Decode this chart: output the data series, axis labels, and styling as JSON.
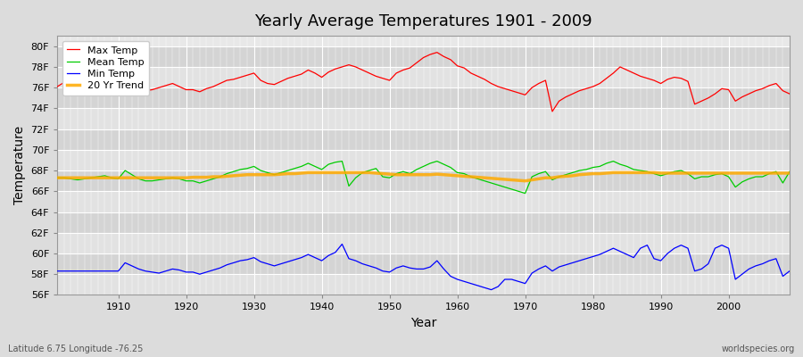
{
  "title": "Yearly Average Temperatures 1901 - 2009",
  "xlabel": "Year",
  "ylabel": "Temperature",
  "subtitle_left": "Latitude 6.75 Longitude -76.25",
  "subtitle_right": "worldspecies.org",
  "ylim": [
    56,
    81
  ],
  "xlim": [
    1901,
    2009
  ],
  "yticks": [
    56,
    58,
    60,
    62,
    64,
    66,
    68,
    70,
    72,
    74,
    76,
    78,
    80
  ],
  "bg_color": "#dcdcdc",
  "plot_bg_light": "#e8e8e8",
  "plot_bg_dark": "#d8d8d8",
  "legend_labels": [
    "Max Temp",
    "Mean Temp",
    "Min Temp",
    "20 Yr Trend"
  ],
  "legend_colors": [
    "#ff0000",
    "#00cc00",
    "#0000ff",
    "#ffaa00"
  ],
  "max_temp": [
    76.1,
    76.5,
    76.3,
    76.0,
    76.2,
    76.4,
    76.1,
    76.0,
    75.8,
    75.7,
    76.5,
    76.3,
    75.9,
    75.7,
    75.8,
    76.0,
    76.2,
    76.4,
    76.1,
    75.8,
    75.8,
    75.6,
    75.9,
    76.1,
    76.4,
    76.7,
    76.8,
    77.0,
    77.2,
    77.4,
    76.7,
    76.4,
    76.3,
    76.6,
    76.9,
    77.1,
    77.3,
    77.7,
    77.4,
    77.0,
    77.5,
    77.8,
    78.0,
    78.2,
    78.0,
    77.7,
    77.4,
    77.1,
    76.9,
    76.7,
    77.4,
    77.7,
    77.9,
    78.4,
    78.9,
    79.2,
    79.4,
    79.0,
    78.7,
    78.1,
    77.9,
    77.4,
    77.1,
    76.8,
    76.4,
    76.1,
    75.9,
    75.7,
    75.5,
    75.3,
    76.0,
    76.4,
    76.7,
    73.7,
    74.7,
    75.1,
    75.4,
    75.7,
    75.9,
    76.1,
    76.4,
    76.9,
    77.4,
    78.0,
    77.7,
    77.4,
    77.1,
    76.9,
    76.7,
    76.4,
    76.8,
    77.0,
    76.9,
    76.6,
    74.4,
    74.7,
    75.0,
    75.4,
    75.9,
    75.8,
    74.7,
    75.1,
    75.4,
    75.7,
    75.9,
    76.2,
    76.4,
    75.7,
    75.4
  ],
  "mean_temp": [
    67.3,
    67.3,
    67.2,
    67.1,
    67.2,
    67.3,
    67.4,
    67.5,
    67.3,
    67.2,
    68.0,
    67.6,
    67.2,
    67.0,
    67.0,
    67.1,
    67.2,
    67.3,
    67.2,
    67.0,
    67.0,
    66.8,
    67.0,
    67.2,
    67.4,
    67.7,
    67.9,
    68.1,
    68.2,
    68.4,
    68.0,
    67.8,
    67.6,
    67.8,
    68.0,
    68.2,
    68.4,
    68.7,
    68.4,
    68.1,
    68.6,
    68.8,
    68.9,
    66.5,
    67.3,
    67.8,
    68.0,
    68.2,
    67.4,
    67.3,
    67.7,
    67.9,
    67.7,
    68.1,
    68.4,
    68.7,
    68.9,
    68.6,
    68.3,
    67.8,
    67.7,
    67.4,
    67.2,
    67.0,
    66.8,
    66.6,
    66.4,
    66.2,
    66.0,
    65.8,
    67.4,
    67.7,
    67.9,
    67.1,
    67.4,
    67.6,
    67.8,
    68.0,
    68.1,
    68.3,
    68.4,
    68.7,
    68.9,
    68.6,
    68.4,
    68.1,
    68.0,
    67.9,
    67.7,
    67.5,
    67.7,
    67.9,
    68.0,
    67.7,
    67.2,
    67.4,
    67.4,
    67.6,
    67.7,
    67.4,
    66.4,
    66.9,
    67.2,
    67.4,
    67.4,
    67.7,
    67.9,
    66.8,
    67.9
  ],
  "min_temp": [
    58.3,
    58.3,
    58.3,
    58.3,
    58.3,
    58.3,
    58.3,
    58.3,
    58.3,
    58.3,
    59.1,
    58.8,
    58.5,
    58.3,
    58.2,
    58.1,
    58.3,
    58.5,
    58.4,
    58.2,
    58.2,
    58.0,
    58.2,
    58.4,
    58.6,
    58.9,
    59.1,
    59.3,
    59.4,
    59.6,
    59.2,
    59.0,
    58.8,
    59.0,
    59.2,
    59.4,
    59.6,
    59.9,
    59.6,
    59.3,
    59.8,
    60.1,
    60.9,
    59.5,
    59.3,
    59.0,
    58.8,
    58.6,
    58.3,
    58.2,
    58.6,
    58.8,
    58.6,
    58.5,
    58.5,
    58.7,
    59.3,
    58.5,
    57.8,
    57.5,
    57.3,
    57.1,
    56.9,
    56.7,
    56.5,
    56.8,
    57.5,
    57.5,
    57.3,
    57.1,
    58.1,
    58.5,
    58.8,
    58.3,
    58.7,
    58.9,
    59.1,
    59.3,
    59.5,
    59.7,
    59.9,
    60.2,
    60.5,
    60.2,
    59.9,
    59.6,
    60.5,
    60.8,
    59.5,
    59.3,
    60.0,
    60.5,
    60.8,
    60.5,
    58.3,
    58.5,
    59.0,
    60.5,
    60.8,
    60.5,
    57.5,
    58.0,
    58.5,
    58.8,
    59.0,
    59.3,
    59.5,
    57.8,
    58.3
  ],
  "trend": [
    67.3,
    67.3,
    67.3,
    67.3,
    67.3,
    67.3,
    67.3,
    67.3,
    67.3,
    67.3,
    67.3,
    67.3,
    67.3,
    67.3,
    67.3,
    67.3,
    67.3,
    67.3,
    67.3,
    67.3,
    67.35,
    67.35,
    67.35,
    67.4,
    67.4,
    67.45,
    67.5,
    67.55,
    67.6,
    67.6,
    67.6,
    67.6,
    67.6,
    67.65,
    67.7,
    67.7,
    67.75,
    67.8,
    67.8,
    67.8,
    67.8,
    67.8,
    67.8,
    67.8,
    67.8,
    67.8,
    67.8,
    67.75,
    67.7,
    67.65,
    67.6,
    67.6,
    67.6,
    67.6,
    67.6,
    67.6,
    67.65,
    67.6,
    67.55,
    67.5,
    67.45,
    67.4,
    67.35,
    67.3,
    67.25,
    67.2,
    67.15,
    67.1,
    67.05,
    67.0,
    67.1,
    67.2,
    67.3,
    67.3,
    67.4,
    67.45,
    67.5,
    67.6,
    67.65,
    67.7,
    67.7,
    67.75,
    67.8,
    67.8,
    67.8,
    67.8,
    67.8,
    67.8,
    67.8,
    67.75,
    67.75,
    67.75,
    67.75,
    67.75,
    67.75,
    67.75,
    67.75,
    67.75,
    67.75,
    67.75,
    67.75,
    67.75,
    67.75,
    67.75,
    67.75,
    67.75,
    67.75,
    67.75,
    67.75
  ]
}
